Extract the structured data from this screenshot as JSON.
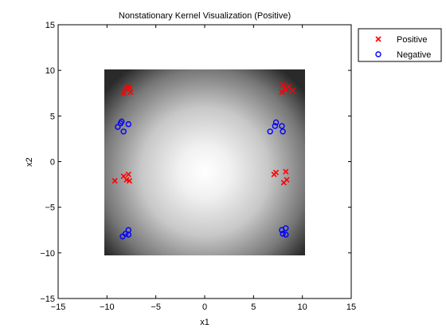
{
  "chart_data": {
    "type": "scatter",
    "title": "Nonstationary Kernel Visualization (Positive)",
    "xlabel": "x1",
    "ylabel": "x2",
    "xlim": [
      -15,
      15
    ],
    "ylim": [
      -15,
      15
    ],
    "xticks": [
      -15,
      -10,
      -5,
      0,
      5,
      10,
      15
    ],
    "yticks": [
      -15,
      -10,
      -5,
      0,
      5,
      10,
      15
    ],
    "xtick_labels": [
      "−15",
      "−10",
      "−5",
      "0",
      "5",
      "10",
      "15"
    ],
    "ytick_labels": [
      "−15",
      "−10",
      "−5",
      "0",
      "5",
      "10",
      "15"
    ],
    "grid": false,
    "legend_position": "outside-top-right",
    "background_image": {
      "type": "kernel-heatmap",
      "colormap": "gray",
      "x_range": [
        -10,
        10
      ],
      "y_range": [
        -10,
        10
      ],
      "brightest_at": [
        0,
        -1
      ]
    },
    "series": [
      {
        "name": "Positive",
        "marker": "x",
        "color": "#ff0000",
        "points": [
          [
            -8.3,
            7.5
          ],
          [
            -8.1,
            8.0
          ],
          [
            -7.9,
            8.2
          ],
          [
            -7.7,
            8.1
          ],
          [
            -7.6,
            7.6
          ],
          [
            8.0,
            8.4
          ],
          [
            7.9,
            7.6
          ],
          [
            8.3,
            7.9
          ],
          [
            8.6,
            8.2
          ],
          [
            9.0,
            7.8
          ],
          [
            -9.2,
            -2.1
          ],
          [
            -8.3,
            -1.6
          ],
          [
            -8.0,
            -2.0
          ],
          [
            -7.8,
            -1.4
          ],
          [
            -7.7,
            -2.1
          ],
          [
            7.1,
            -1.4
          ],
          [
            7.3,
            -1.2
          ],
          [
            8.1,
            -2.3
          ],
          [
            8.3,
            -1.1
          ],
          [
            8.4,
            -2.0
          ]
        ]
      },
      {
        "name": "Negative",
        "marker": "o",
        "color": "#0000ff",
        "points": [
          [
            -8.9,
            3.8
          ],
          [
            -8.6,
            4.2
          ],
          [
            -8.3,
            3.3
          ],
          [
            -7.8,
            4.1
          ],
          [
            -8.5,
            4.4
          ],
          [
            6.7,
            3.3
          ],
          [
            7.2,
            3.9
          ],
          [
            7.3,
            4.3
          ],
          [
            7.9,
            3.9
          ],
          [
            8.0,
            3.3
          ],
          [
            -8.4,
            -8.2
          ],
          [
            -8.1,
            -7.9
          ],
          [
            -7.8,
            -7.5
          ],
          [
            -7.8,
            -8.0
          ],
          [
            7.9,
            -7.5
          ],
          [
            8.0,
            -7.9
          ],
          [
            8.3,
            -7.3
          ],
          [
            8.3,
            -8.0
          ]
        ]
      }
    ]
  }
}
